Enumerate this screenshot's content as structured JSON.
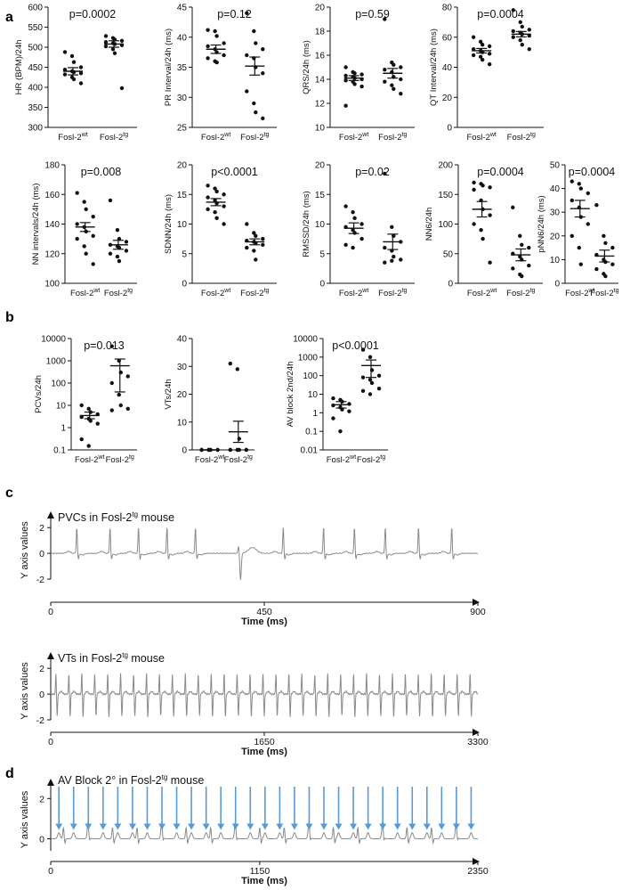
{
  "panel_letters": [
    "a",
    "b",
    "c",
    "d"
  ],
  "colors": {
    "ink": "#111111",
    "trace": "#8a8a8a",
    "arrow": "#5b9bd5"
  },
  "chart_data": [
    {
      "id": "hr",
      "type": "scatter",
      "title": "p=0.0002",
      "ylabel": "HR (BPM)/24h",
      "yscale": "linear",
      "ylim": [
        300,
        600
      ],
      "yticks": [
        300,
        350,
        400,
        450,
        500,
        550,
        600
      ],
      "groups": [
        {
          "label": "Fosl-2",
          "sup": "wt",
          "mean": 440,
          "sem": 9,
          "values": [
            488,
            478,
            463,
            450,
            444,
            440,
            438,
            435,
            432,
            425,
            420,
            410
          ]
        },
        {
          "label": "Fosl-2",
          "sup": "tg",
          "mean": 508,
          "sem": 8,
          "values": [
            528,
            523,
            519,
            516,
            513,
            510,
            508,
            505,
            502,
            495,
            485,
            398
          ]
        }
      ]
    },
    {
      "id": "pr",
      "type": "scatter",
      "title": "p=0.12",
      "ylabel": "PR Interval/24h (ms)",
      "yscale": "linear",
      "ylim": [
        25,
        45
      ],
      "yticks": [
        25,
        30,
        35,
        40,
        45
      ],
      "groups": [
        {
          "label": "Fosl-2",
          "sup": "wt",
          "mean": 38,
          "sem": 0.7,
          "values": [
            41.2,
            41,
            40.2,
            39,
            38.5,
            38,
            37.5,
            37,
            36.5,
            36,
            35.8
          ]
        },
        {
          "label": "Fosl-2",
          "sup": "tg",
          "mean": 35.2,
          "sem": 1.5,
          "values": [
            44,
            41,
            39,
            38,
            37,
            36.5,
            35,
            34,
            31,
            29,
            27.5,
            26.5
          ]
        }
      ]
    },
    {
      "id": "qrs",
      "type": "scatter",
      "title": "p=0.59",
      "ylabel": "QRS/24h (ms)",
      "yscale": "linear",
      "ylim": [
        10,
        20
      ],
      "yticks": [
        10,
        12,
        14,
        16,
        18,
        20
      ],
      "groups": [
        {
          "label": "Fosl-2",
          "sup": "wt",
          "mean": 14.1,
          "sem": 0.2,
          "values": [
            15.0,
            14.6,
            14.5,
            14.4,
            14.3,
            14.2,
            14.1,
            14.0,
            13.9,
            13.8,
            13.6,
            13.4,
            11.8
          ]
        },
        {
          "label": "Fosl-2",
          "sup": "tg",
          "mean": 14.5,
          "sem": 0.4,
          "values": [
            19.0,
            15.4,
            15.2,
            15.0,
            14.8,
            14.6,
            14.2,
            14.0,
            13.8,
            13.5,
            13.2,
            12.8
          ]
        }
      ]
    },
    {
      "id": "qt",
      "type": "scatter",
      "title": "p=0.0004",
      "ylabel": "QT Interval/24h (ms)",
      "yscale": "linear",
      "ylim": [
        0,
        80
      ],
      "yticks": [
        0,
        20,
        40,
        60,
        80
      ],
      "groups": [
        {
          "label": "Fosl-2",
          "sup": "wt",
          "mean": 51,
          "sem": 1.5,
          "values": [
            60,
            57,
            55,
            54,
            52,
            51,
            50,
            49,
            48,
            47,
            45,
            42
          ]
        },
        {
          "label": "Fosl-2",
          "sup": "tg",
          "mean": 62,
          "sem": 1.8,
          "values": [
            78,
            70,
            67,
            65,
            64,
            63,
            62,
            61,
            60,
            58,
            55,
            52
          ]
        }
      ]
    },
    {
      "id": "nn",
      "type": "scatter",
      "title": "p=0.008",
      "ylabel": "NN intervals/24h (ms)",
      "yscale": "linear",
      "ylim": [
        100,
        180
      ],
      "yticks": [
        100,
        120,
        140,
        160,
        180
      ],
      "groups": [
        {
          "label": "Fosl-2",
          "sup": "wt",
          "mean": 138,
          "sem": 3,
          "values": [
            161,
            155,
            150,
            145,
            140,
            138,
            135,
            132,
            130,
            125,
            120,
            113
          ]
        },
        {
          "label": "Fosl-2",
          "sup": "tg",
          "mean": 126,
          "sem": 3,
          "values": [
            156,
            136,
            130,
            128,
            126,
            125,
            124,
            122,
            120,
            118,
            115
          ]
        }
      ]
    },
    {
      "id": "sdnn",
      "type": "scatter",
      "title": "p<0.0001",
      "ylabel": "SDNN/24h (ms)",
      "yscale": "linear",
      "ylim": [
        0,
        20
      ],
      "yticks": [
        0,
        5,
        10,
        15,
        20
      ],
      "groups": [
        {
          "label": "Fosl-2",
          "sup": "wt",
          "mean": 13.7,
          "sem": 0.6,
          "values": [
            16.5,
            16,
            15.5,
            15,
            14.5,
            14,
            13.5,
            13,
            12.5,
            12,
            11,
            10
          ]
        },
        {
          "label": "Fosl-2",
          "sup": "tg",
          "mean": 7,
          "sem": 0.5,
          "values": [
            10,
            8.5,
            8,
            7.5,
            7.2,
            7,
            6.8,
            6.5,
            6,
            5.5,
            4
          ]
        }
      ]
    },
    {
      "id": "rmssd",
      "type": "scatter",
      "title": "p=0.02",
      "ylabel": "RMSSD/24h (ms)",
      "yscale": "linear",
      "ylim": [
        0,
        20
      ],
      "yticks": [
        0,
        5,
        10,
        15,
        20
      ],
      "groups": [
        {
          "label": "Fosl-2",
          "sup": "wt",
          "mean": 9.3,
          "sem": 0.9,
          "values": [
            13,
            12,
            11,
            10,
            9.5,
            9,
            8.5,
            7.5,
            6.5,
            6
          ]
        },
        {
          "label": "Fosl-2",
          "sup": "tg",
          "mean": 7,
          "sem": 1.3,
          "values": [
            18.5,
            9.5,
            8,
            7,
            6,
            5.5,
            4.5,
            4,
            3.5,
            3.8
          ]
        }
      ]
    },
    {
      "id": "nn6",
      "type": "scatter",
      "title": "p=0.0004",
      "ylabel": "NN6/24h",
      "yscale": "linear",
      "ylim": [
        0,
        200
      ],
      "yticks": [
        0,
        50,
        100,
        150,
        200
      ],
      "groups": [
        {
          "label": "Fosl-2",
          "sup": "wt",
          "mean": 125,
          "sem": 13,
          "values": [
            170,
            168,
            165,
            162,
            158,
            140,
            125,
            115,
            100,
            90,
            75,
            35
          ]
        },
        {
          "label": "Fosl-2",
          "sup": "tg",
          "mean": 48,
          "sem": 10,
          "values": [
            128,
            80,
            65,
            60,
            50,
            45,
            40,
            30,
            25,
            15,
            12
          ]
        }
      ]
    },
    {
      "id": "pnn6",
      "type": "scatter",
      "title": "p=0.0004",
      "ylabel": "pNN6/24h (ms)",
      "yscale": "linear",
      "ylim": [
        0,
        50
      ],
      "yticks": [
        0,
        10,
        20,
        30,
        40,
        50
      ],
      "groups": [
        {
          "label": "Fosl-2",
          "sup": "wt",
          "mean": 31.5,
          "sem": 3.5,
          "values": [
            43,
            42,
            40,
            38,
            35,
            32,
            28,
            25,
            20,
            15,
            8
          ]
        },
        {
          "label": "Fosl-2",
          "sup": "tg",
          "mean": 11.5,
          "sem": 2.5,
          "values": [
            33,
            20,
            17,
            15,
            12,
            10,
            9,
            8,
            6,
            4,
            3
          ]
        }
      ]
    },
    {
      "id": "pvcs",
      "type": "scatter",
      "title": "p=0.013",
      "ylabel": "PCVs/24h",
      "yscale": "log",
      "ylim": [
        0.1,
        10000
      ],
      "yticks": [
        0.1,
        1,
        10,
        100,
        1000,
        10000
      ],
      "yticklabels": [
        "0.1",
        "1",
        "10",
        "100",
        "1000",
        "10000"
      ],
      "groups": [
        {
          "label": "Fosl-2",
          "sup": "wt",
          "mean": 3.5,
          "sem_range": [
            2.5,
            5
          ],
          "values": [
            10,
            7,
            5,
            4,
            3,
            2.5,
            2,
            1.5,
            0.3,
            0.15
          ]
        },
        {
          "label": "Fosl-2",
          "sup": "tg",
          "mean": 600,
          "sem_range": [
            40,
            1200
          ],
          "values": [
            4500,
            1000,
            300,
            200,
            100,
            30,
            10,
            7,
            6
          ]
        }
      ]
    },
    {
      "id": "vts",
      "type": "scatter",
      "title": "",
      "ylabel": "VTs/24h",
      "yscale": "linear",
      "ylim": [
        0,
        40
      ],
      "yticks": [
        0,
        10,
        20,
        30,
        40
      ],
      "groups": [
        {
          "label": "Fosl-2",
          "sup": "wt",
          "mean": 0,
          "sem": 0,
          "values": [
            0,
            0,
            0,
            0,
            0,
            0,
            0,
            0,
            0,
            0
          ]
        },
        {
          "label": "Fosl-2",
          "sup": "tg",
          "mean": 6.5,
          "sem": 3.8,
          "values": [
            31,
            29,
            4,
            0,
            0,
            0,
            0,
            0,
            0,
            0
          ]
        }
      ]
    },
    {
      "id": "avb",
      "type": "scatter",
      "title": "p<0.0001",
      "ylabel": "AV block 2nd/24h",
      "yscale": "log",
      "ylim": [
        0.01,
        10000
      ],
      "yticks": [
        0.01,
        0.1,
        1,
        10,
        100,
        1000,
        10000
      ],
      "yticklabels": [
        "0.01",
        "0.1",
        "1",
        "10",
        "100",
        "1000",
        "10000"
      ],
      "groups": [
        {
          "label": "Fosl-2",
          "sup": "wt",
          "mean": 2.7,
          "sem_range": [
            1.8,
            4
          ],
          "values": [
            6,
            5,
            4,
            3,
            2.5,
            2,
            1.5,
            1.2,
            0.5,
            0.1
          ]
        },
        {
          "label": "Fosl-2",
          "sup": "tg",
          "mean": 350,
          "sem_range": [
            80,
            700
          ],
          "values": [
            2500,
            1000,
            200,
            100,
            80,
            60,
            40,
            20,
            15,
            10
          ]
        }
      ]
    },
    {
      "id": "trace_pvc",
      "type": "line",
      "title": "PVCs in Fosl-2",
      "title_sup": "tg",
      "title_tail": " mouse",
      "xlabel": "Time (ms)",
      "ylabel": "Y axis values",
      "xlim": [
        0,
        900
      ],
      "xticks": [
        0,
        450,
        900
      ],
      "ylim": [
        -2,
        2.5
      ],
      "yticks": [
        -2,
        0,
        2
      ],
      "beat_times": [
        55,
        125,
        185,
        245,
        305,
        490,
        575,
        640,
        705,
        775,
        845
      ],
      "pvc_time": 400
    },
    {
      "id": "trace_vt",
      "type": "line",
      "title": "VTs in Fosl-2",
      "title_sup": "tg",
      "title_tail": " mouse",
      "xlabel": "Time (ms)",
      "ylabel": "Y axis values",
      "xlim": [
        0,
        3300
      ],
      "xticks": [
        0,
        1650,
        3300
      ],
      "ylim": [
        -2,
        2.5
      ],
      "yticks": [
        -2,
        0,
        2
      ],
      "beat_interval": 100,
      "beat_start": 50
    },
    {
      "id": "trace_avb",
      "type": "line",
      "title": "AV Block 2° in Fosl-2",
      "title_sup": "tg",
      "title_tail": " mouse",
      "xlabel": "Time (ms)",
      "ylabel": "Y axis values",
      "xlim": [
        0,
        2350
      ],
      "xticks": [
        0,
        1150,
        2350
      ],
      "ylim": [
        -0.6,
        2.5
      ],
      "yticks": [
        0,
        2
      ],
      "qrs_interval": 135,
      "p_interval": 81,
      "p_start": 45
    }
  ]
}
